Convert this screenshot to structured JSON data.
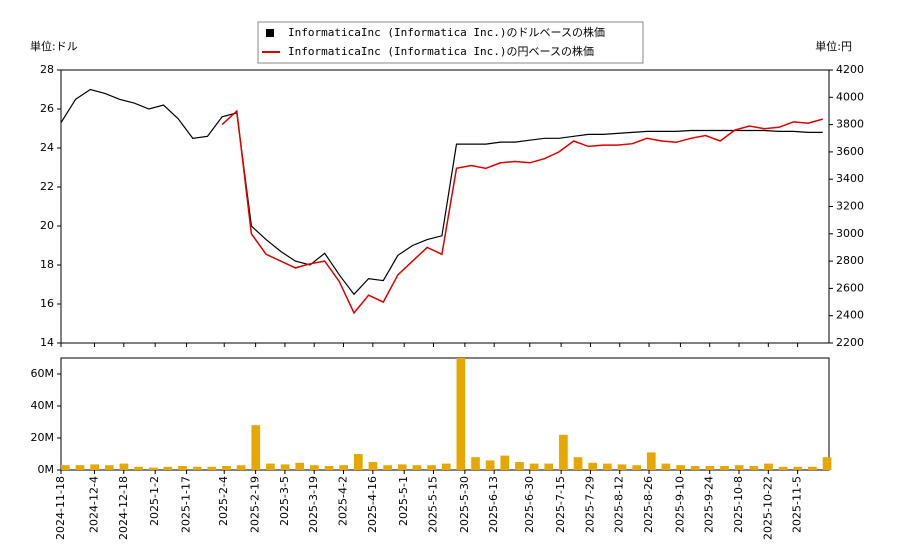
{
  "chart_data": [
    {
      "type": "line",
      "ylabel": "単位:ドル",
      "y2label": "単位:円",
      "x": [
        "2024-11-18",
        "2024-11-25",
        "2024-12-02",
        "2024-12-09",
        "2024-12-16",
        "2024-12-23",
        "2024-12-30",
        "2025-01-06",
        "2025-01-13",
        "2025-01-20",
        "2025-01-27",
        "2025-02-03",
        "2025-02-10",
        "2025-02-17",
        "2025-02-24",
        "2025-03-03",
        "2025-03-10",
        "2025-03-17",
        "2025-03-24",
        "2025-03-31",
        "2025-04-07",
        "2025-04-14",
        "2025-04-21",
        "2025-04-28",
        "2025-05-05",
        "2025-05-12",
        "2025-05-19",
        "2025-05-26",
        "2025-06-02",
        "2025-06-09",
        "2025-06-16",
        "2025-06-23",
        "2025-06-30",
        "2025-07-07",
        "2025-07-14",
        "2025-07-21",
        "2025-07-28",
        "2025-08-04",
        "2025-08-11",
        "2025-08-18",
        "2025-08-25",
        "2025-09-01",
        "2025-09-08",
        "2025-09-15",
        "2025-09-22",
        "2025-09-29",
        "2025-10-06",
        "2025-10-13",
        "2025-10-20",
        "2025-10-27",
        "2025-11-03",
        "2025-11-10",
        "2025-11-17"
      ],
      "xlim": [
        "2024-11-18",
        "2025-11-20"
      ],
      "series": [
        {
          "name": "InformaticaInc (Informatica Inc.)のドルベースの株価",
          "color": "#000000",
          "values": [
            25.3,
            26.5,
            27.0,
            26.8,
            26.5,
            26.3,
            26.0,
            26.2,
            25.5,
            24.5,
            24.6,
            25.6,
            25.8,
            20.0,
            19.3,
            18.7,
            18.2,
            18.0,
            18.6,
            17.5,
            16.5,
            17.3,
            17.2,
            18.5,
            19.0,
            19.3,
            19.5,
            24.2,
            24.2,
            24.2,
            24.3,
            24.3,
            24.4,
            24.5,
            24.5,
            24.6,
            24.7,
            24.7,
            24.75,
            24.8,
            24.85,
            24.85,
            24.85,
            24.9,
            24.9,
            24.9,
            24.9,
            24.9,
            24.9,
            24.85,
            24.85,
            24.8,
            24.8
          ]
        },
        {
          "name": "InformaticaInc (Informatica Inc.)の円ベースの株価",
          "color": "#dd0000",
          "axis": "y2",
          "values": [
            null,
            null,
            null,
            null,
            null,
            null,
            null,
            null,
            null,
            null,
            null,
            3800,
            3900,
            3000,
            2850,
            2800,
            2750,
            2780,
            2800,
            2650,
            2420,
            2550,
            2500,
            2700,
            2800,
            2900,
            2850,
            3480,
            3500,
            3480,
            3520,
            3530,
            3520,
            3550,
            3600,
            3680,
            3640,
            3650,
            3650,
            3660,
            3700,
            3680,
            3670,
            3700,
            3720,
            3680,
            3760,
            3790,
            3770,
            3780,
            3820,
            3810,
            3840
          ]
        }
      ],
      "ylim": [
        14,
        28
      ],
      "yticks": [
        14,
        16,
        18,
        20,
        22,
        24,
        26,
        28
      ],
      "y2lim": [
        2200,
        4200
      ],
      "y2ticks": [
        2200,
        2400,
        2600,
        2800,
        3000,
        3200,
        3400,
        3600,
        3800,
        4000,
        4200
      ],
      "legend": "top"
    },
    {
      "type": "bar",
      "x": [
        "2024-11-18",
        "2024-11-25",
        "2024-12-02",
        "2024-12-09",
        "2024-12-16",
        "2024-12-23",
        "2024-12-30",
        "2025-01-06",
        "2025-01-13",
        "2025-01-20",
        "2025-01-27",
        "2025-02-03",
        "2025-02-10",
        "2025-02-17",
        "2025-02-24",
        "2025-03-03",
        "2025-03-10",
        "2025-03-17",
        "2025-03-24",
        "2025-03-31",
        "2025-04-07",
        "2025-04-14",
        "2025-04-21",
        "2025-04-28",
        "2025-05-05",
        "2025-05-12",
        "2025-05-19",
        "2025-05-26",
        "2025-06-02",
        "2025-06-09",
        "2025-06-16",
        "2025-06-23",
        "2025-06-30",
        "2025-07-07",
        "2025-07-14",
        "2025-07-21",
        "2025-07-28",
        "2025-08-04",
        "2025-08-11",
        "2025-08-18",
        "2025-08-25",
        "2025-09-01",
        "2025-09-08",
        "2025-09-15",
        "2025-09-22",
        "2025-09-29",
        "2025-10-06",
        "2025-10-13",
        "2025-10-20",
        "2025-10-27",
        "2025-11-03",
        "2025-11-10",
        "2025-11-17"
      ],
      "xlim": [
        "2024-11-18",
        "2025-11-20"
      ],
      "color": "#e6a800",
      "values": [
        3000000,
        3000000,
        3500000,
        3000000,
        4000000,
        2000000,
        1500000,
        2000000,
        2500000,
        2000000,
        2000000,
        2500000,
        3000000,
        28000000,
        4000000,
        3500000,
        4500000,
        3000000,
        2500000,
        3000000,
        10000000,
        5000000,
        3000000,
        3500000,
        3000000,
        3000000,
        4000000,
        70000000,
        8000000,
        6000000,
        9000000,
        5000000,
        4000000,
        4000000,
        22000000,
        8000000,
        4500000,
        4000000,
        3500000,
        3000000,
        11000000,
        4000000,
        3000000,
        2500000,
        2500000,
        2500000,
        3000000,
        2500000,
        4000000,
        2000000,
        2000000,
        2000000,
        8000000
      ],
      "ylim": [
        0,
        70000000
      ],
      "yticks": [
        {
          "value": 0,
          "label": "0M"
        },
        {
          "value": 20000000,
          "label": "20M"
        },
        {
          "value": 40000000,
          "label": "40M"
        },
        {
          "value": 60000000,
          "label": "60M"
        }
      ],
      "xticks": [
        "2024-11-18",
        "2024-12-4",
        "2024-12-18",
        "2025-1-2",
        "2025-1-17",
        "2025-2-4",
        "2025-2-19",
        "2025-3-5",
        "2025-3-19",
        "2025-4-2",
        "2025-4-16",
        "2025-5-1",
        "2025-5-15",
        "2025-5-30",
        "2025-6-13",
        "2025-6-30",
        "2025-7-15",
        "2025-7-29",
        "2025-8-12",
        "2025-8-26",
        "2025-9-10",
        "2025-9-24",
        "2025-10-8",
        "2025-10-22",
        "2025-11-5"
      ]
    }
  ]
}
